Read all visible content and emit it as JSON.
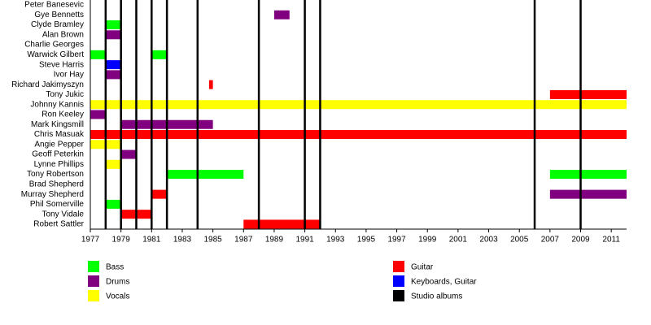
{
  "chart_data": {
    "type": "timeline",
    "xlim": [
      1977,
      2012
    ],
    "xticks": [
      1977,
      1979,
      1981,
      1983,
      1985,
      1987,
      1989,
      1991,
      1993,
      1995,
      1997,
      1999,
      2001,
      2003,
      2005,
      2007,
      2009,
      2011
    ],
    "roles": [
      {
        "name": "Bass",
        "color": "#00ff00"
      },
      {
        "name": "Drums",
        "color": "#800080"
      },
      {
        "name": "Vocals",
        "color": "#ffff00"
      },
      {
        "name": "Guitar",
        "color": "#ff0000"
      },
      {
        "name": "Keyboards, Guitar",
        "color": "#0000ff"
      }
    ],
    "albums": {
      "name": "Studio albums",
      "color": "#000000",
      "years": [
        1978,
        1979,
        1980,
        1981,
        1982,
        1984,
        1988,
        1991,
        1992,
        2006,
        2009
      ]
    },
    "members": [
      {
        "name": "Peter Banesevic",
        "spans": []
      },
      {
        "name": "Gye Bennetts",
        "spans": [
          {
            "role": "Drums",
            "start": 1989,
            "end": 1990
          }
        ]
      },
      {
        "name": "Clyde Bramley",
        "spans": [
          {
            "role": "Bass",
            "start": 1978,
            "end": 1979
          }
        ]
      },
      {
        "name": "Alan Brown",
        "spans": [
          {
            "role": "Drums",
            "start": 1978,
            "end": 1979
          }
        ]
      },
      {
        "name": "Charlie Georges",
        "spans": []
      },
      {
        "name": "Warwick Gilbert",
        "spans": [
          {
            "role": "Bass",
            "start": 1977,
            "end": 1978
          },
          {
            "role": "Bass",
            "start": 1981,
            "end": 1982
          }
        ]
      },
      {
        "name": "Steve Harris",
        "spans": [
          {
            "role": "Keyboards, Guitar",
            "start": 1978,
            "end": 1979
          }
        ]
      },
      {
        "name": "Ivor Hay",
        "spans": [
          {
            "role": "Drums",
            "start": 1978,
            "end": 1979
          }
        ]
      },
      {
        "name": "Richard Jakimyszyn",
        "spans": [
          {
            "role": "Guitar",
            "start": 1984.75,
            "end": 1985
          }
        ]
      },
      {
        "name": "Tony Jukic",
        "spans": [
          {
            "role": "Guitar",
            "start": 2007,
            "end": 2012
          }
        ]
      },
      {
        "name": "Johnny Kannis",
        "spans": [
          {
            "role": "Vocals",
            "start": 1977,
            "end": 2012
          }
        ]
      },
      {
        "name": "Ron Keeley",
        "spans": [
          {
            "role": "Drums",
            "start": 1977,
            "end": 1978
          }
        ]
      },
      {
        "name": "Mark Kingsmill",
        "spans": [
          {
            "role": "Drums",
            "start": 1979,
            "end": 1985
          }
        ]
      },
      {
        "name": "Chris Masuak",
        "spans": [
          {
            "role": "Guitar",
            "start": 1977,
            "end": 2012
          }
        ]
      },
      {
        "name": "Angie Pepper",
        "spans": [
          {
            "role": "Vocals",
            "start": 1977,
            "end": 1979
          }
        ]
      },
      {
        "name": "Geoff Peterkin",
        "spans": [
          {
            "role": "Drums",
            "start": 1979,
            "end": 1980
          }
        ]
      },
      {
        "name": "Lynne Phillips",
        "spans": [
          {
            "role": "Vocals",
            "start": 1978,
            "end": 1979
          }
        ]
      },
      {
        "name": "Tony Robertson",
        "spans": [
          {
            "role": "Bass",
            "start": 1982,
            "end": 1987
          },
          {
            "role": "Bass",
            "start": 2007,
            "end": 2012
          }
        ]
      },
      {
        "name": "Brad Shepherd",
        "spans": []
      },
      {
        "name": "Murray Shepherd",
        "spans": [
          {
            "role": "Guitar",
            "start": 1981,
            "end": 1982
          },
          {
            "role": "Drums",
            "start": 2007,
            "end": 2012
          }
        ]
      },
      {
        "name": "Phil Somerville",
        "spans": [
          {
            "role": "Bass",
            "start": 1978,
            "end": 1979
          }
        ]
      },
      {
        "name": "Tony Vidale",
        "spans": [
          {
            "role": "Guitar",
            "start": 1979,
            "end": 1981
          }
        ]
      },
      {
        "name": "Robert Sattler",
        "spans": [
          {
            "role": "Guitar",
            "start": 1987,
            "end": 1992
          }
        ]
      }
    ]
  }
}
